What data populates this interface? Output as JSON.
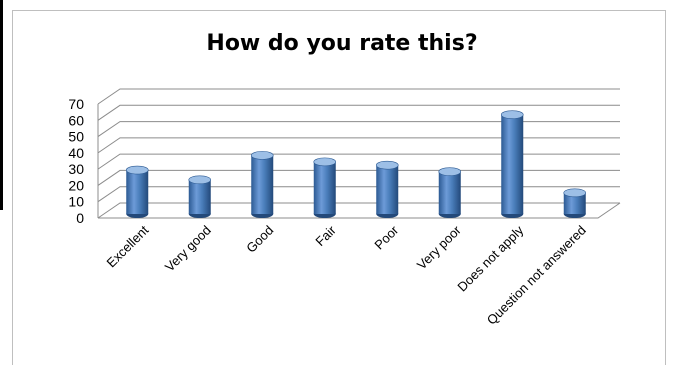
{
  "chart_data": {
    "type": "bar",
    "title": "How do you rate this?",
    "categories": [
      "Excellent",
      "Very good",
      "Good",
      "Fair",
      "Poor",
      "Very poor",
      "Does not apply",
      "Question not answered"
    ],
    "values": [
      27,
      21,
      36,
      32,
      30,
      26,
      61,
      13
    ],
    "ylim": [
      0,
      70
    ],
    "yticks": [
      0,
      10,
      20,
      30,
      40,
      50,
      60,
      70
    ],
    "grid": true,
    "legend": "none",
    "colors": {
      "bar": "#4a7ebb",
      "bar_dark": "#2c5a93",
      "bar_light": "#9dbfe6",
      "grid": "#8c8c8c"
    }
  }
}
